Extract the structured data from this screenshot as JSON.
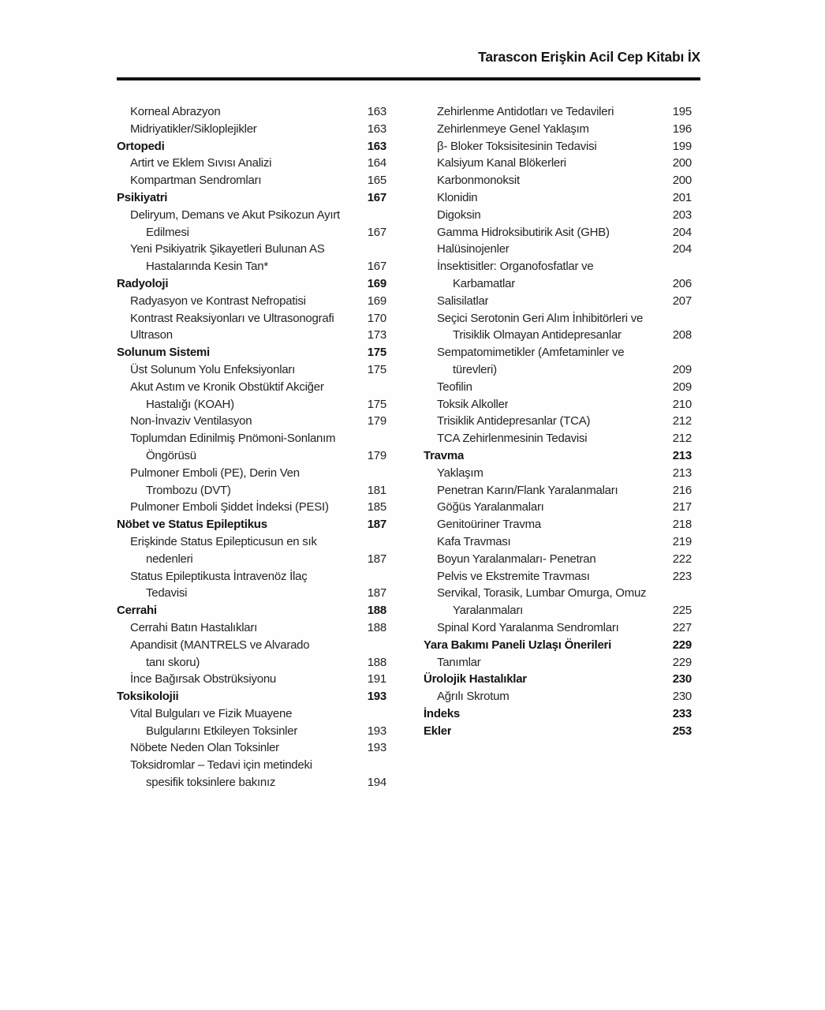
{
  "page": {
    "header_title": "Tarascon Erişkin Acil Cep Kitabı İX"
  },
  "toc": {
    "left_column": [
      {
        "text": "Korneal Abrazyon",
        "page": "163",
        "bold": false,
        "indent": 1
      },
      {
        "text": "Midriyatikler/Sikloplejikler",
        "page": "163",
        "bold": false,
        "indent": 1
      },
      {
        "text": "Ortopedi",
        "page": "163",
        "bold": true,
        "indent": 0
      },
      {
        "text": "Artirt ve Eklem Sıvısı Analizi",
        "page": "164",
        "bold": false,
        "indent": 1
      },
      {
        "text": "Kompartman Sendromları",
        "page": "165",
        "bold": false,
        "indent": 1
      },
      {
        "text": "Psikiyatri",
        "page": "167",
        "bold": true,
        "indent": 0
      },
      {
        "text": "Deliryum, Demans ve Akut Psikozun Ayırt",
        "page": "",
        "bold": false,
        "indent": 1
      },
      {
        "text": "Edilmesi",
        "page": "167",
        "bold": false,
        "indent": 2
      },
      {
        "text": "Yeni Psikiyatrik Şikayetleri Bulunan AS",
        "page": "",
        "bold": false,
        "indent": 1
      },
      {
        "text": "Hastalarında Kesin Tan*",
        "page": "167",
        "bold": false,
        "indent": 2
      },
      {
        "text": "Radyoloji",
        "page": "169",
        "bold": true,
        "indent": 0
      },
      {
        "text": "Radyasyon ve Kontrast Nefropatisi",
        "page": "169",
        "bold": false,
        "indent": 1
      },
      {
        "text": "Kontrast Reaksiyonları ve Ultrasonografi",
        "page": "170",
        "bold": false,
        "indent": 1
      },
      {
        "text": "Ultrason",
        "page": "173",
        "bold": false,
        "indent": 1
      },
      {
        "text": "Solunum Sistemi",
        "page": "175",
        "bold": true,
        "indent": 0
      },
      {
        "text": "Üst Solunum Yolu Enfeksiyonları",
        "page": "175",
        "bold": false,
        "indent": 1
      },
      {
        "text": "Akut Astım ve Kronik Obstüktif Akciğer",
        "page": "",
        "bold": false,
        "indent": 1
      },
      {
        "text": "Hastalığı (KOAH)",
        "page": "175",
        "bold": false,
        "indent": 2
      },
      {
        "text": "Non-İnvaziv Ventilasyon",
        "page": "179",
        "bold": false,
        "indent": 1
      },
      {
        "text": "Toplumdan Edinilmiş Pnömoni-Sonlanım",
        "page": "",
        "bold": false,
        "indent": 1
      },
      {
        "text": "Öngörüsü",
        "page": "179",
        "bold": false,
        "indent": 2
      },
      {
        "text": "Pulmoner Emboli (PE), Derin Ven",
        "page": "",
        "bold": false,
        "indent": 1
      },
      {
        "text": "Trombozu (DVT)",
        "page": "181",
        "bold": false,
        "indent": 2
      },
      {
        "text": "Pulmoner Emboli Şiddet İndeksi (PESI)",
        "page": "185",
        "bold": false,
        "indent": 1
      },
      {
        "text": "Nöbet ve Status Epileptikus",
        "page": "187",
        "bold": true,
        "indent": 0
      },
      {
        "text": "Erişkinde Status Epilepticusun en sık",
        "page": "",
        "bold": false,
        "indent": 1
      },
      {
        "text": "nedenleri",
        "page": "187",
        "bold": false,
        "indent": 2
      },
      {
        "text": "Status Epileptikusta İntravenöz İlaç",
        "page": "",
        "bold": false,
        "indent": 1
      },
      {
        "text": "Tedavisi",
        "page": "187",
        "bold": false,
        "indent": 2
      },
      {
        "text": "Cerrahi",
        "page": "188",
        "bold": true,
        "indent": 0
      },
      {
        "text": "Cerrahi Batın Hastalıkları",
        "page": "188",
        "bold": false,
        "indent": 1
      },
      {
        "text": "Apandisit (MANTRELS ve Alvarado",
        "page": "",
        "bold": false,
        "indent": 1
      },
      {
        "text": "tanı skoru)",
        "page": "188",
        "bold": false,
        "indent": 2
      },
      {
        "text": "İnce Bağırsak Obstrüksiyonu",
        "page": "191",
        "bold": false,
        "indent": 1
      },
      {
        "text": "Toksikolojii",
        "page": "193",
        "bold": true,
        "indent": 0
      },
      {
        "text": "Vital Bulguları ve Fizik Muayene",
        "page": "",
        "bold": false,
        "indent": 1
      },
      {
        "text": "Bulgularını Etkileyen Toksinler",
        "page": "193",
        "bold": false,
        "indent": 2
      },
      {
        "text": "Nöbete Neden Olan Toksinler",
        "page": "193",
        "bold": false,
        "indent": 1
      },
      {
        "text": "Toksidromlar – Tedavi için metindeki",
        "page": "",
        "bold": false,
        "indent": 1
      },
      {
        "text": "spesifik toksinlere bakınız",
        "page": "194",
        "bold": false,
        "indent": 2
      }
    ],
    "right_column": [
      {
        "text": "Zehirlenme Antidotları ve Tedavileri",
        "page": "195",
        "bold": false,
        "indent": 1
      },
      {
        "text": "Zehirlenmeye Genel Yaklaşım",
        "page": "196",
        "bold": false,
        "indent": 1
      },
      {
        "text": "β- Bloker Toksisitesinin Tedavisi",
        "page": "199",
        "bold": false,
        "indent": 1
      },
      {
        "text": "Kalsiyum Kanal Blökerleri",
        "page": "200",
        "bold": false,
        "indent": 1
      },
      {
        "text": "Karbonmonoksit",
        "page": "200",
        "bold": false,
        "indent": 1
      },
      {
        "text": "Klonidin",
        "page": "201",
        "bold": false,
        "indent": 1
      },
      {
        "text": "Digoksin",
        "page": "203",
        "bold": false,
        "indent": 1
      },
      {
        "text": "Gamma Hidroksibutirik Asit (GHB)",
        "page": "204",
        "bold": false,
        "indent": 1
      },
      {
        "text": "Halüsinojenler",
        "page": "204",
        "bold": false,
        "indent": 1
      },
      {
        "text": "İnsektisitler: Organofosfatlar ve",
        "page": "",
        "bold": false,
        "indent": 1
      },
      {
        "text": "Karbamatlar",
        "page": "206",
        "bold": false,
        "indent": 2
      },
      {
        "text": "Salisilatlar",
        "page": "207",
        "bold": false,
        "indent": 1
      },
      {
        "text": "Seçici Serotonin Geri Alım İnhibitörleri ve",
        "page": "",
        "bold": false,
        "indent": 1
      },
      {
        "text": "Trisiklik Olmayan Antidepresanlar",
        "page": "208",
        "bold": false,
        "indent": 2
      },
      {
        "text": "Sempatomimetikler (Amfetaminler ve",
        "page": "",
        "bold": false,
        "indent": 1
      },
      {
        "text": "türevleri)",
        "page": "209",
        "bold": false,
        "indent": 2
      },
      {
        "text": "Teofilin",
        "page": "209",
        "bold": false,
        "indent": 1
      },
      {
        "text": "Toksik Alkoller",
        "page": "210",
        "bold": false,
        "indent": 1
      },
      {
        "text": "Trisiklik Antidepresanlar (TCA)",
        "page": "212",
        "bold": false,
        "indent": 1
      },
      {
        "text": "TCA Zehirlenmesinin Tedavisi",
        "page": "212",
        "bold": false,
        "indent": 1
      },
      {
        "text": "Travma",
        "page": "213",
        "bold": true,
        "indent": 0
      },
      {
        "text": "Yaklaşım",
        "page": "213",
        "bold": false,
        "indent": 1
      },
      {
        "text": "Penetran Karın/Flank Yaralanmaları",
        "page": "216",
        "bold": false,
        "indent": 1
      },
      {
        "text": "Göğüs Yaralanmaları",
        "page": "217",
        "bold": false,
        "indent": 1
      },
      {
        "text": "Genitoüriner Travma",
        "page": "218",
        "bold": false,
        "indent": 1
      },
      {
        "text": "Kafa Travması",
        "page": "219",
        "bold": false,
        "indent": 1
      },
      {
        "text": "Boyun Yaralanmaları- Penetran",
        "page": "222",
        "bold": false,
        "indent": 1
      },
      {
        "text": "Pelvis ve Ekstremite Travması",
        "page": "223",
        "bold": false,
        "indent": 1
      },
      {
        "text": "Servikal, Torasik, Lumbar Omurga, Omuz",
        "page": "",
        "bold": false,
        "indent": 1
      },
      {
        "text": "Yaralanmaları",
        "page": "225",
        "bold": false,
        "indent": 2
      },
      {
        "text": "Spinal Kord Yaralanma Sendromları",
        "page": "227",
        "bold": false,
        "indent": 1
      },
      {
        "text": "Yara Bakımı Paneli Uzlaşı Önerileri",
        "page": "229",
        "bold": true,
        "indent": 0
      },
      {
        "text": "Tanımlar",
        "page": "229",
        "bold": false,
        "indent": 1
      },
      {
        "text": "Ürolojik Hastalıklar",
        "page": "230",
        "bold": true,
        "indent": 0
      },
      {
        "text": "Ağrılı Skrotum",
        "page": "230",
        "bold": false,
        "indent": 1
      },
      {
        "text": "İndeks",
        "page": "233",
        "bold": true,
        "indent": 0
      },
      {
        "text": "Ekler",
        "page": "253",
        "bold": true,
        "indent": 0
      }
    ]
  }
}
